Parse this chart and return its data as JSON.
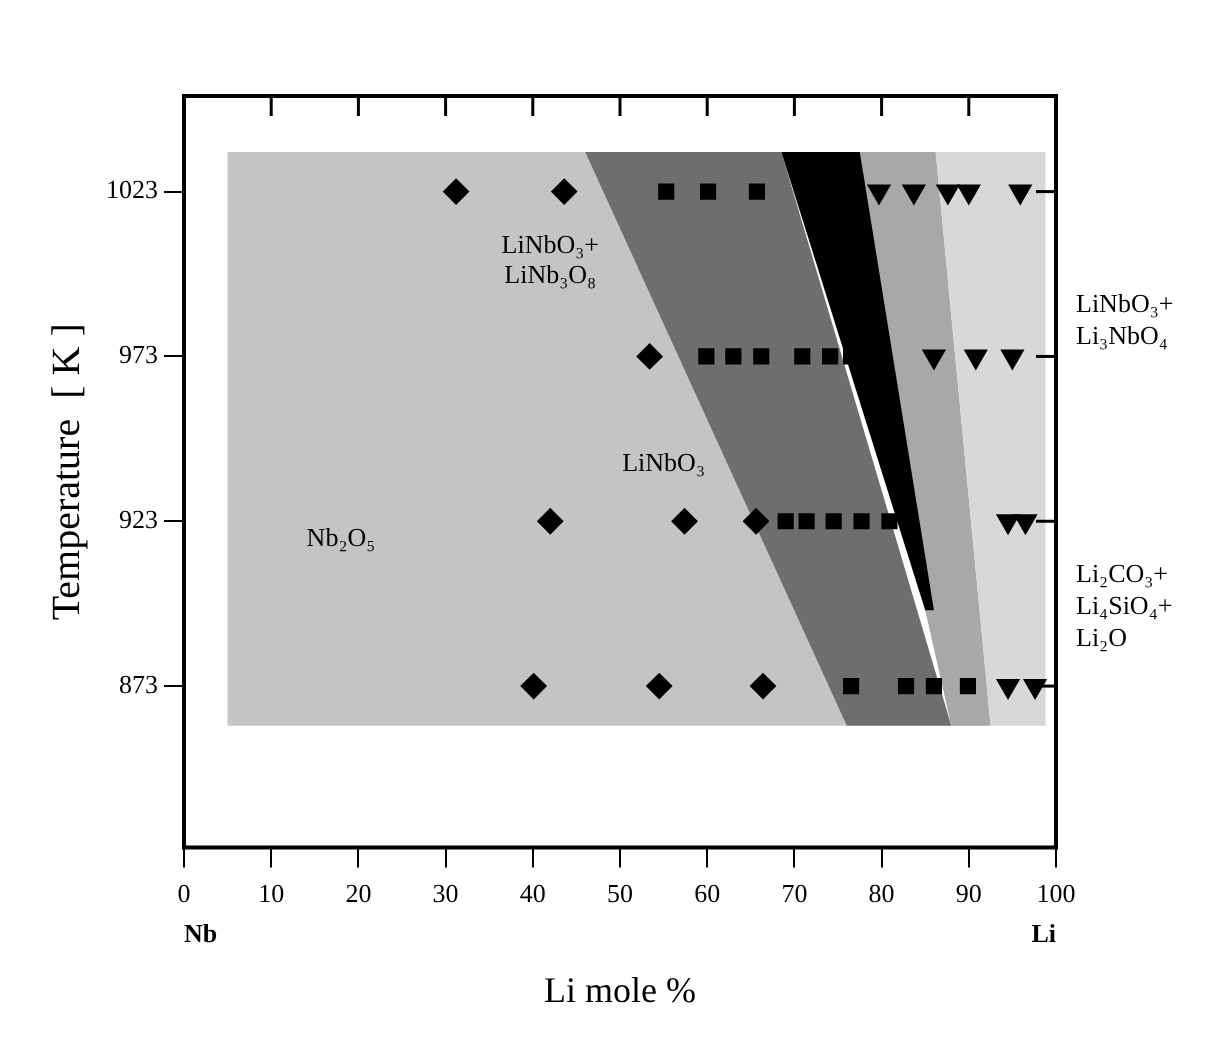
{
  "chart_data": {
    "type": "scatter",
    "xlabel": "Li mole %",
    "ylabel": "Temperature  [ K ]",
    "xlim": [
      0,
      100
    ],
    "ylim": [
      824,
      1052
    ],
    "xticks": [
      0,
      10,
      20,
      30,
      40,
      50,
      60,
      70,
      80,
      90,
      100
    ],
    "yticks": [
      873,
      923,
      973,
      1023
    ],
    "grid": false,
    "series": [
      {
        "type": "area",
        "color": "#c4c4c4",
        "x": [
          5,
          46,
          76,
          5,
          5
        ],
        "values": [
          1035,
          1035,
          861,
          861,
          1035
        ]
      },
      {
        "type": "area",
        "color": "#6e6e6e",
        "x": [
          46,
          68.5,
          88,
          76,
          46
        ],
        "values": [
          1035,
          1035,
          861,
          861,
          1035
        ]
      },
      {
        "type": "area",
        "color": "#a8a8a8",
        "x": [
          77.5,
          86.2,
          92.5,
          88,
          85,
          77.5
        ],
        "values": [
          1035,
          1035,
          861,
          861,
          896,
          1035
        ]
      },
      {
        "type": "area",
        "color": "#d8d8d8",
        "x": [
          86.2,
          98.8,
          98.8,
          92.5,
          86.2
        ],
        "values": [
          1035,
          1035,
          861,
          861,
          1035
        ]
      },
      {
        "type": "area",
        "color": "#000000",
        "x": [
          68.5,
          77.5,
          86,
          85,
          68.5
        ],
        "values": [
          1035,
          1035,
          896,
          896,
          1035
        ]
      },
      {
        "type": "scatter",
        "marker": "diamond",
        "color": "#000000",
        "x": [
          31.2,
          43.6,
          53.4,
          42,
          57.4,
          65.6,
          40.1,
          54.5,
          66.4
        ],
        "values": [
          1023,
          1023,
          973,
          923,
          923,
          923,
          873,
          873,
          873
        ]
      },
      {
        "type": "scatter",
        "marker": "square",
        "color": "#000000",
        "x": [
          55.3,
          60.1,
          65.7,
          59.9,
          63,
          66.2,
          70.9,
          74.1,
          76.5,
          69,
          71.4,
          74.5,
          77.7,
          80.9,
          76.5,
          82.8,
          86,
          89.9
        ],
        "values": [
          1023,
          1023,
          1023,
          973,
          973,
          973,
          973,
          973,
          973,
          923,
          923,
          923,
          923,
          923,
          873,
          873,
          873,
          873
        ]
      },
      {
        "type": "scatter",
        "marker": "triangle",
        "color": "#000000",
        "x": [
          79.7,
          83.7,
          87.6,
          90,
          95.9,
          86,
          90.8,
          95,
          94.5,
          96.5,
          94.5,
          97.6
        ],
        "values": [
          1023,
          1023,
          1023,
          1023,
          1023,
          973,
          973,
          973,
          923,
          923,
          873,
          873
        ]
      }
    ],
    "annotations": [
      "Nb₂O₅",
      "LiNbO₃+\nLiNb₃O₈",
      "LiNbO₃",
      "LiNbO₃+\nLi₃NbO₄",
      "Li₂CO₃+\nLi₄SiO₄+\nLi₂O",
      "Nb",
      "Li"
    ]
  }
}
